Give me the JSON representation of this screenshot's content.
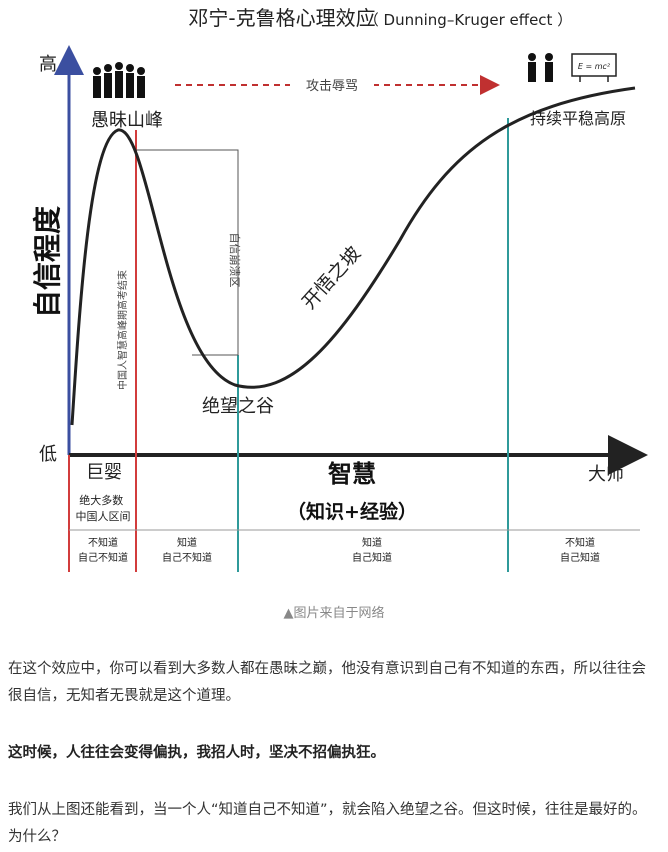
{
  "diagram": {
    "title": "邓宁-克鲁格心理效应",
    "title_en": "（ Dunning–Kruger effect ）",
    "y_axis": {
      "label": "自信程度",
      "high": "高",
      "low": "低"
    },
    "x_axis": {
      "label": "智慧",
      "sub_label": "（知识+经验）",
      "start": "巨婴",
      "end": "大师"
    },
    "peak_label": "愚昧山峰",
    "valley_label": "绝望之谷",
    "slope_label": "开悟之坡",
    "plateau_label": "持续平稳高原",
    "arrow_label": "攻击辱骂",
    "vertical_note_left": "中国人智慧高峰期高考结束",
    "vertical_note_right": "自信崩溃区",
    "formula": "E = mc²",
    "stages": [
      "不知道\n自己不知道",
      "知道\n自己不知道",
      "知道\n自己知道",
      "不知道\n自己知道"
    ],
    "majority_note": "绝大多数\n中国人区间",
    "colors": {
      "y_axis": "#3b4fa0",
      "red_line": "#d23c3c",
      "teal_line": "#2f9a9a",
      "arrow": "#c03030"
    }
  },
  "caption": "▲图片来自于网络",
  "paragraphs": [
    "在这个效应中，你可以看到大多数人都在愚昧之巅，他没有意识到自己有不知道的东西，所以往往会很自信，无知者无畏就是这个道理。",
    "这时候，人往往会变得偏执，我招人时，坚决不招偏执狂。",
    "我们从上图还能看到，当一个人“知道自己不知道”，就会陷入绝望之谷。但这时候，往往是最好的。为什么？"
  ]
}
